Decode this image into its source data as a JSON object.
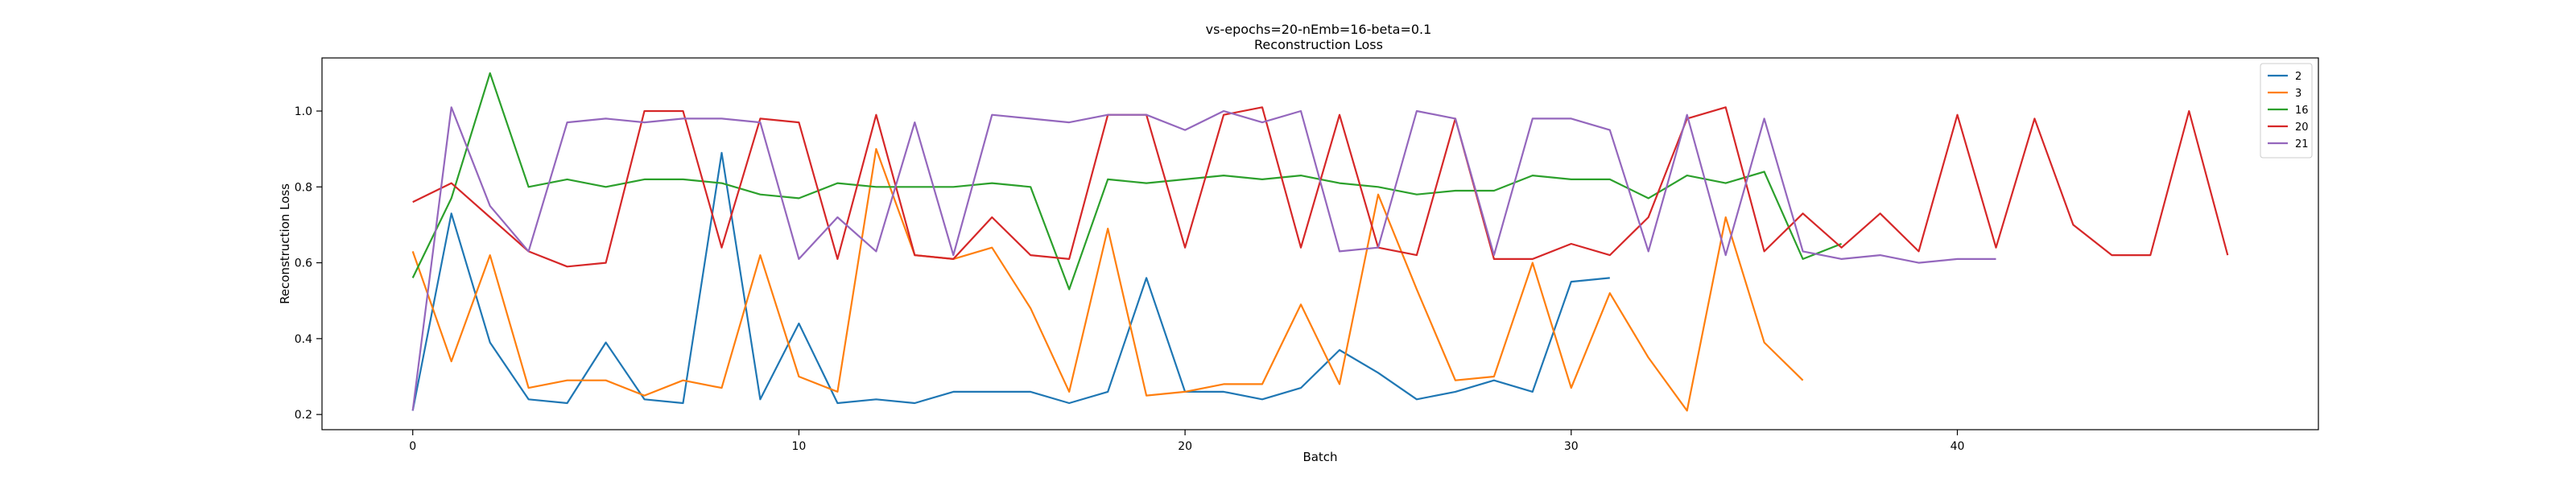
{
  "chart_data": {
    "type": "line",
    "title": "vs-epochs=20-nEmb=16-beta=0.1",
    "subtitle": "Reconstruction Loss",
    "xlabel": "Batch",
    "ylabel": "Reconstruction Loss",
    "xlim": [
      -2.35,
      49.35
    ],
    "ylim": [
      0.16,
      1.14
    ],
    "xticks": [
      0,
      10,
      20,
      30,
      40
    ],
    "yticks": [
      0.2,
      0.4,
      0.6,
      0.8,
      1.0
    ],
    "ytick_labels": [
      "0.2",
      "0.4",
      "0.6",
      "0.8",
      "1.0"
    ],
    "grid": false,
    "legend_position": "top-right",
    "series": [
      {
        "name": "2",
        "color": "#1f77b4",
        "values": [
          0.21,
          0.73,
          0.39,
          0.24,
          0.23,
          0.39,
          0.24,
          0.23,
          0.89,
          0.24,
          0.44,
          0.23,
          0.24,
          0.23,
          0.26,
          0.26,
          0.26,
          0.23,
          0.26,
          0.56,
          0.26,
          0.26,
          0.24,
          0.27,
          0.37,
          0.31,
          0.24,
          0.26,
          0.29,
          0.26,
          0.55,
          0.56
        ]
      },
      {
        "name": "3",
        "color": "#ff7f0e",
        "values": [
          0.63,
          0.34,
          0.62,
          0.27,
          0.29,
          0.29,
          0.25,
          0.29,
          0.27,
          0.62,
          0.3,
          0.26,
          0.9,
          0.62,
          0.61,
          0.64,
          0.48,
          0.26,
          0.69,
          0.25,
          0.26,
          0.28,
          0.28,
          0.49,
          0.28,
          0.78,
          0.53,
          0.29,
          0.3,
          0.6,
          0.27,
          0.52,
          0.35,
          0.21,
          0.72,
          0.39,
          0.29
        ]
      },
      {
        "name": "16",
        "color": "#2ca02c",
        "values": [
          0.56,
          0.77,
          1.1,
          0.8,
          0.82,
          0.8,
          0.82,
          0.82,
          0.81,
          0.78,
          0.77,
          0.81,
          0.8,
          0.8,
          0.8,
          0.81,
          0.8,
          0.53,
          0.82,
          0.81,
          0.82,
          0.83,
          0.82,
          0.83,
          0.81,
          0.8,
          0.78,
          0.79,
          0.79,
          0.83,
          0.82,
          0.82,
          0.77,
          0.83,
          0.81,
          0.84,
          0.61,
          0.65
        ]
      },
      {
        "name": "20",
        "color": "#d62728",
        "values": [
          0.76,
          0.81,
          0.72,
          0.63,
          0.59,
          0.6,
          1.0,
          1.0,
          0.64,
          0.98,
          0.97,
          0.61,
          0.99,
          0.62,
          0.61,
          0.72,
          0.62,
          0.61,
          0.99,
          0.99,
          0.64,
          0.99,
          1.01,
          0.64,
          0.99,
          0.64,
          0.62,
          0.98,
          0.61,
          0.61,
          0.65,
          0.62,
          0.72,
          0.98,
          1.01,
          0.63,
          0.73,
          0.64,
          0.73,
          0.63,
          0.99,
          0.64,
          0.98,
          0.7,
          0.62,
          0.62,
          1.0,
          0.62
        ]
      },
      {
        "name": "21",
        "color": "#9467bd",
        "values": [
          0.21,
          1.01,
          0.75,
          0.63,
          0.97,
          0.98,
          0.97,
          0.98,
          0.98,
          0.97,
          0.61,
          0.72,
          0.63,
          0.97,
          0.62,
          0.99,
          0.98,
          0.97,
          0.99,
          0.99,
          0.95,
          1.0,
          0.97,
          1.0,
          0.63,
          0.64,
          1.0,
          0.98,
          0.62,
          0.98,
          0.98,
          0.95,
          0.63,
          0.99,
          0.62,
          0.98,
          0.63,
          0.61,
          0.62,
          0.6,
          0.61,
          0.61
        ]
      }
    ]
  }
}
